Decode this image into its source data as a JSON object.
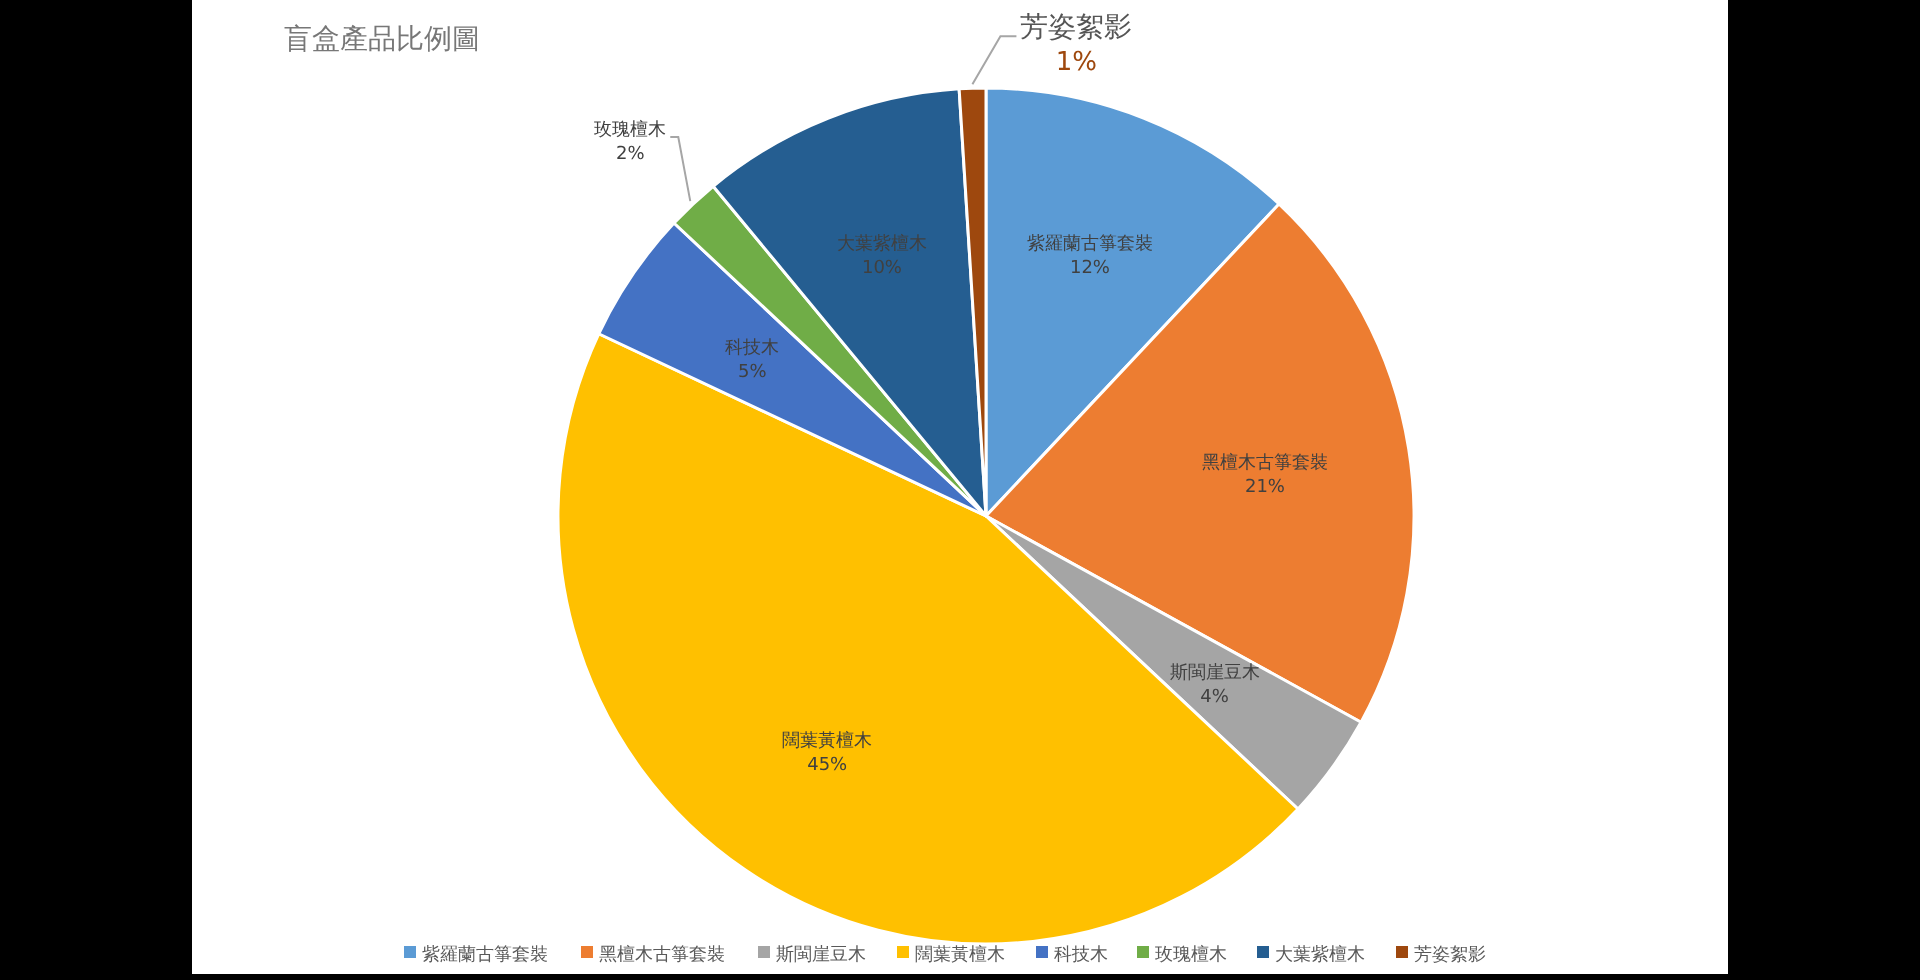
{
  "chart_data": {
    "type": "pie",
    "title": "盲盒產品比例圖",
    "categories": [
      "紫羅蘭古箏套裝",
      "黑檀木古箏套裝",
      "斯閩崖豆木",
      "闊葉黃檀木",
      "科技木",
      "玫瑰檀木",
      "大葉紫檀木",
      "芳姿絮影"
    ],
    "values": [
      12,
      21,
      4,
      45,
      5,
      2,
      10,
      1
    ],
    "colors": [
      "#5b9bd5",
      "#ed7d31",
      "#a5a5a5",
      "#ffc000",
      "#4472c4",
      "#70ad47",
      "#255e91",
      "#9e480e"
    ],
    "value_labels": [
      "12%",
      "21%",
      "4%",
      "45%",
      "5%",
      "2%",
      "10%",
      "1%"
    ],
    "legend": "bottom"
  }
}
